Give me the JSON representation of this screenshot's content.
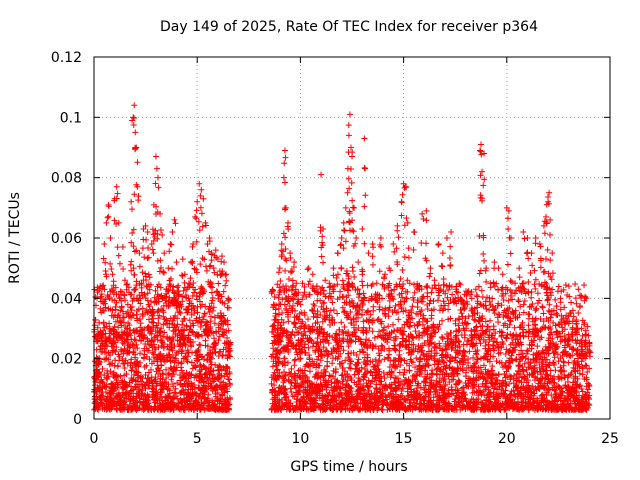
{
  "chart_data": {
    "type": "scatter",
    "title": "Day 149 of 2025, Rate Of TEC Index for receiver p364",
    "xlabel": "GPS time / hours",
    "ylabel": "ROTI / TECUs",
    "xlim": [
      0,
      25
    ],
    "ylim": [
      0,
      0.12
    ],
    "x_ticks": [
      0,
      5,
      10,
      15,
      20,
      25
    ],
    "x_tick_labels": [
      "0",
      "5",
      "10",
      "15",
      "20",
      "25"
    ],
    "y_ticks": [
      0,
      0.02,
      0.04,
      0.06,
      0.08,
      0.1,
      0.12
    ],
    "y_tick_labels": [
      "0",
      "0.02",
      "0.04",
      "0.06",
      "0.08",
      "0.1",
      "0.12"
    ],
    "grid": true,
    "marker": "+",
    "color": "#ff0000",
    "data_gap_hours": [
      6.6,
      8.6
    ],
    "series": [
      {
        "points": [
          [
            0.0,
            0.009
          ],
          [
            0.1,
            0.016
          ],
          [
            0.2,
            0.02
          ],
          [
            0.3,
            0.012
          ],
          [
            0.4,
            0.044
          ],
          [
            0.5,
            0.058
          ],
          [
            0.6,
            0.065
          ],
          [
            0.7,
            0.071
          ],
          [
            0.8,
            0.06
          ],
          [
            0.9,
            0.048
          ],
          [
            1.0,
            0.073
          ],
          [
            1.1,
            0.077
          ],
          [
            1.2,
            0.065
          ],
          [
            1.3,
            0.04
          ],
          [
            1.4,
            0.057
          ],
          [
            1.5,
            0.046
          ],
          [
            1.6,
            0.03
          ],
          [
            1.7,
            0.042
          ],
          [
            1.8,
            0.072
          ],
          [
            1.9,
            0.1
          ],
          [
            1.95,
            0.104
          ],
          [
            2.0,
            0.095
          ],
          [
            2.05,
            0.09
          ],
          [
            2.1,
            0.077
          ],
          [
            2.2,
            0.055
          ],
          [
            2.3,
            0.045
          ],
          [
            2.4,
            0.063
          ],
          [
            2.5,
            0.064
          ],
          [
            2.6,
            0.062
          ],
          [
            2.7,
            0.047
          ],
          [
            2.8,
            0.058
          ],
          [
            2.9,
            0.071
          ],
          [
            3.0,
            0.087
          ],
          [
            3.05,
            0.083
          ],
          [
            3.1,
            0.08
          ],
          [
            3.2,
            0.068
          ],
          [
            3.3,
            0.061
          ],
          [
            3.4,
            0.055
          ],
          [
            3.5,
            0.043
          ],
          [
            3.6,
            0.05
          ],
          [
            3.7,
            0.058
          ],
          [
            3.8,
            0.062
          ],
          [
            3.9,
            0.066
          ],
          [
            4.0,
            0.052
          ],
          [
            4.1,
            0.041
          ],
          [
            4.2,
            0.038
          ],
          [
            4.3,
            0.053
          ],
          [
            4.4,
            0.048
          ],
          [
            4.5,
            0.043
          ],
          [
            4.6,
            0.045
          ],
          [
            4.7,
            0.052
          ],
          [
            4.8,
            0.058
          ],
          [
            4.9,
            0.067
          ],
          [
            5.0,
            0.072
          ],
          [
            5.1,
            0.078
          ],
          [
            5.2,
            0.076
          ],
          [
            5.3,
            0.073
          ],
          [
            5.4,
            0.065
          ],
          [
            5.5,
            0.058
          ],
          [
            5.6,
            0.06
          ],
          [
            5.7,
            0.055
          ],
          [
            5.8,
            0.05
          ],
          [
            5.9,
            0.056
          ],
          [
            6.0,
            0.053
          ],
          [
            6.1,
            0.049
          ],
          [
            6.2,
            0.054
          ],
          [
            6.3,
            0.052
          ],
          [
            6.4,
            0.048
          ],
          [
            6.5,
            0.04
          ],
          [
            6.55,
            0.025
          ],
          [
            8.7,
            0.038
          ],
          [
            8.8,
            0.035
          ],
          [
            8.9,
            0.032
          ],
          [
            9.0,
            0.05
          ],
          [
            9.1,
            0.058
          ],
          [
            9.2,
            0.08
          ],
          [
            9.25,
            0.089
          ],
          [
            9.3,
            0.07
          ],
          [
            9.4,
            0.065
          ],
          [
            9.5,
            0.055
          ],
          [
            9.6,
            0.049
          ],
          [
            9.7,
            0.052
          ],
          [
            9.8,
            0.045
          ],
          [
            9.9,
            0.042
          ],
          [
            10.0,
            0.038
          ],
          [
            10.1,
            0.045
          ],
          [
            10.2,
            0.042
          ],
          [
            10.4,
            0.05
          ],
          [
            10.6,
            0.048
          ],
          [
            10.8,
            0.042
          ],
          [
            11.0,
            0.081
          ],
          [
            11.1,
            0.063
          ],
          [
            11.2,
            0.046
          ],
          [
            11.4,
            0.045
          ],
          [
            11.6,
            0.05
          ],
          [
            11.8,
            0.055
          ],
          [
            12.0,
            0.06
          ],
          [
            12.1,
            0.065
          ],
          [
            12.2,
            0.07
          ],
          [
            12.3,
            0.083
          ],
          [
            12.35,
            0.094
          ],
          [
            12.4,
            0.101
          ],
          [
            12.45,
            0.09
          ],
          [
            12.5,
            0.087
          ],
          [
            12.6,
            0.07
          ],
          [
            12.7,
            0.06
          ],
          [
            12.8,
            0.052
          ],
          [
            13.0,
            0.063
          ],
          [
            13.1,
            0.093
          ],
          [
            13.3,
            0.055
          ],
          [
            13.5,
            0.058
          ],
          [
            13.7,
            0.045
          ],
          [
            13.9,
            0.06
          ],
          [
            14.1,
            0.048
          ],
          [
            14.3,
            0.05
          ],
          [
            14.5,
            0.058
          ],
          [
            14.7,
            0.064
          ],
          [
            14.9,
            0.072
          ],
          [
            15.0,
            0.078
          ],
          [
            15.1,
            0.077
          ],
          [
            15.2,
            0.065
          ],
          [
            15.3,
            0.045
          ],
          [
            15.5,
            0.062
          ],
          [
            15.7,
            0.043
          ],
          [
            15.9,
            0.068
          ],
          [
            16.1,
            0.069
          ],
          [
            16.3,
            0.05
          ],
          [
            16.5,
            0.046
          ],
          [
            16.7,
            0.058
          ],
          [
            16.9,
            0.055
          ],
          [
            17.1,
            0.06
          ],
          [
            17.3,
            0.062
          ],
          [
            17.5,
            0.04
          ],
          [
            17.7,
            0.045
          ],
          [
            17.9,
            0.038
          ],
          [
            18.1,
            0.042
          ],
          [
            18.3,
            0.04
          ],
          [
            18.5,
            0.043
          ],
          [
            18.7,
            0.089
          ],
          [
            18.75,
            0.091
          ],
          [
            18.8,
            0.082
          ],
          [
            18.9,
            0.088
          ],
          [
            19.0,
            0.05
          ],
          [
            19.2,
            0.045
          ],
          [
            19.4,
            0.052
          ],
          [
            19.6,
            0.05
          ],
          [
            19.8,
            0.048
          ],
          [
            20.0,
            0.07
          ],
          [
            20.1,
            0.069
          ],
          [
            20.2,
            0.06
          ],
          [
            20.4,
            0.045
          ],
          [
            20.6,
            0.05
          ],
          [
            20.8,
            0.062
          ],
          [
            21.0,
            0.06
          ],
          [
            21.2,
            0.055
          ],
          [
            21.4,
            0.06
          ],
          [
            21.6,
            0.058
          ],
          [
            21.8,
            0.064
          ],
          [
            21.9,
            0.067
          ],
          [
            22.0,
            0.072
          ],
          [
            22.05,
            0.075
          ],
          [
            22.1,
            0.066
          ],
          [
            22.2,
            0.055
          ],
          [
            22.4,
            0.035
          ],
          [
            22.6,
            0.04
          ],
          [
            22.8,
            0.032
          ],
          [
            23.0,
            0.028
          ],
          [
            23.2,
            0.036
          ],
          [
            23.4,
            0.03
          ],
          [
            23.6,
            0.026
          ],
          [
            23.8,
            0.028
          ],
          [
            24.0,
            0.025
          ]
        ],
        "dense_band": {
          "ranges_hours": [
            [
              0.0,
              6.6
            ],
            [
              8.6,
              24.0
            ]
          ],
          "typical_range": [
            0.003,
            0.03
          ]
        }
      }
    ]
  }
}
